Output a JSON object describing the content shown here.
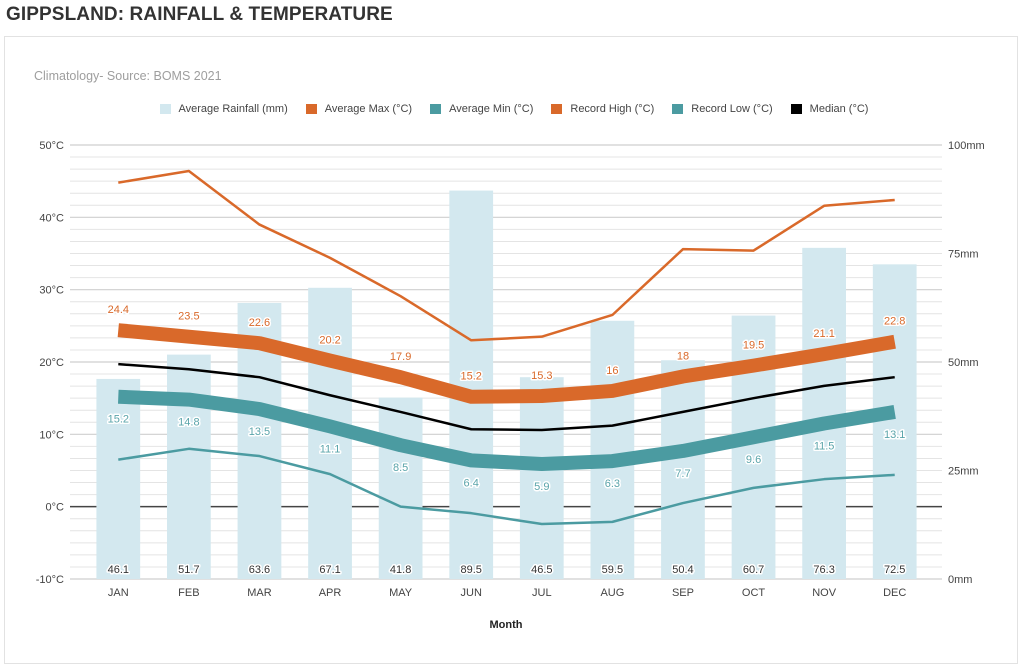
{
  "page_title": "GIPPSLAND: RAINFALL & TEMPERATURE",
  "chart_data": {
    "type": "bar+line",
    "title": "Climatology- Source: BOMS 2021",
    "xlabel": "Month",
    "ylabel_left": "",
    "ylabel_right": "",
    "categories": [
      "JAN",
      "FEB",
      "MAR",
      "APR",
      "MAY",
      "JUN",
      "JUL",
      "AUG",
      "SEP",
      "OCT",
      "NOV",
      "DEC"
    ],
    "ylim_left": [
      -10,
      50
    ],
    "ylim_right": [
      0,
      100
    ],
    "left_ticks": [
      "-10°C",
      "0°C",
      "10°C",
      "20°C",
      "30°C",
      "40°C",
      "50°C"
    ],
    "left_tick_values": [
      -10,
      0,
      10,
      20,
      30,
      40,
      50
    ],
    "right_ticks": [
      "0mm",
      "25mm",
      "50mm",
      "75mm",
      "100mm"
    ],
    "right_tick_values": [
      0,
      25,
      50,
      75,
      100
    ],
    "grid": true,
    "legend_position": "top-center",
    "series": [
      {
        "name": "Average Rainfall (mm)",
        "type": "bar",
        "axis": "right",
        "color": "#d3e8ef",
        "values": [
          46.1,
          51.7,
          63.6,
          67.1,
          41.8,
          89.5,
          46.5,
          59.5,
          50.4,
          60.7,
          76.3,
          72.5
        ],
        "labels": [
          "46.1",
          "51.7",
          "63.6",
          "67.1",
          "41.8",
          "89.5",
          "46.5",
          "59.5",
          "50.4",
          "60.7",
          "76.3",
          "72.5"
        ]
      },
      {
        "name": "Average Max (°C)",
        "type": "line",
        "axis": "left",
        "color": "#d9692a",
        "weight": "thick",
        "values": [
          24.4,
          23.5,
          22.6,
          20.2,
          17.9,
          15.2,
          15.3,
          16,
          18,
          19.5,
          21.1,
          22.8
        ],
        "labels": [
          "24.4",
          "23.5",
          "22.6",
          "20.2",
          "17.9",
          "15.2",
          "15.3",
          "16",
          "18",
          "19.5",
          "21.1",
          "22.8"
        ]
      },
      {
        "name": "Average Min (°C)",
        "type": "line",
        "axis": "left",
        "color": "#4b9ba1",
        "weight": "thick",
        "values": [
          15.2,
          14.8,
          13.5,
          11.1,
          8.5,
          6.4,
          5.9,
          6.3,
          7.7,
          9.6,
          11.5,
          13.1
        ],
        "labels": [
          "15.2",
          "14.8",
          "13.5",
          "11.1",
          "8.5",
          "6.4",
          "5.9",
          "6.3",
          "7.7",
          "9.6",
          "11.5",
          "13.1"
        ]
      },
      {
        "name": "Record High (°C)",
        "type": "line",
        "axis": "left",
        "color": "#d9692a",
        "weight": "thin",
        "values": [
          44.8,
          46.4,
          39.0,
          34.4,
          29.1,
          23.0,
          23.5,
          26.5,
          35.6,
          35.4,
          41.6,
          42.4
        ]
      },
      {
        "name": "Record Low (°C)",
        "type": "line",
        "axis": "left",
        "color": "#4b9ba1",
        "weight": "thin",
        "values": [
          6.5,
          8.0,
          7.0,
          4.5,
          0.0,
          -0.9,
          -2.4,
          -2.1,
          0.5,
          2.6,
          3.8,
          4.4
        ]
      },
      {
        "name": "Median  (°C)",
        "type": "line",
        "axis": "left",
        "color": "#000000",
        "weight": "thin",
        "values": [
          19.7,
          19.0,
          17.9,
          15.4,
          13.1,
          10.7,
          10.6,
          11.2,
          13.1,
          15.0,
          16.7,
          17.9
        ]
      }
    ]
  }
}
